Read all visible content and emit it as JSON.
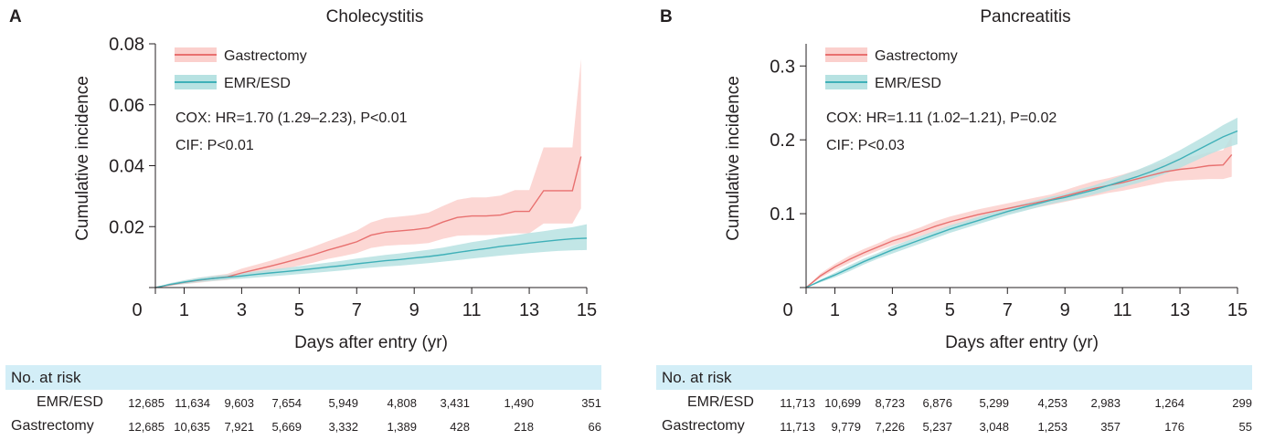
{
  "colors": {
    "gastrectomy": "#e8706f",
    "gastrectomy_band": "#fbd0cd",
    "emr": "#3fb0b8",
    "emr_band": "#b7e2e2",
    "risk_band": "#d3eef7"
  },
  "chart_data": [
    {
      "panel": "A",
      "type": "line",
      "title": "Cholecystitis",
      "xlabel": "Days after entry (yr)",
      "ylabel": "Cumulative incidence",
      "xlim": [
        0,
        15
      ],
      "ylim": [
        0,
        0.08
      ],
      "x_ticks": [
        0,
        1,
        3,
        5,
        7,
        9,
        11,
        13,
        15
      ],
      "y_ticks": [
        "",
        "0.02",
        "0.04",
        "0.06",
        "0.08"
      ],
      "y_tick_values": [
        0,
        0.02,
        0.04,
        0.06,
        0.08
      ],
      "legend": {
        "placement": "top-left"
      },
      "annotations": [
        "COX: HR=1.70 (1.29–2.23), P<0.01",
        "CIF: P<0.01"
      ],
      "series": [
        {
          "name": "Gastrectomy",
          "x": [
            0,
            0.5,
            1,
            1.5,
            2,
            2.5,
            3,
            3.5,
            4,
            4.5,
            5,
            5.5,
            6,
            6.5,
            7,
            7.5,
            8,
            8.5,
            9,
            9.5,
            10,
            10.5,
            11,
            11.5,
            12,
            12.5,
            13,
            13.5,
            14,
            14.5,
            14.8
          ],
          "values": [
            0,
            0.0009,
            0.0017,
            0.0024,
            0.003,
            0.0035,
            0.0048,
            0.0059,
            0.007,
            0.0082,
            0.0095,
            0.0108,
            0.0123,
            0.0136,
            0.015,
            0.0172,
            0.0182,
            0.0186,
            0.019,
            0.0196,
            0.0215,
            0.023,
            0.0235,
            0.0235,
            0.0238,
            0.025,
            0.025,
            0.0318,
            0.0318,
            0.0318,
            0.043
          ],
          "lower": [
            0,
            0.0005,
            0.0011,
            0.0016,
            0.0021,
            0.0025,
            0.0034,
            0.0043,
            0.0052,
            0.0061,
            0.0072,
            0.0082,
            0.0094,
            0.0103,
            0.0113,
            0.013,
            0.0137,
            0.014,
            0.0142,
            0.0146,
            0.016,
            0.017,
            0.0172,
            0.0172,
            0.0174,
            0.0178,
            0.0178,
            0.021,
            0.021,
            0.021,
            0.026
          ],
          "upper": [
            0,
            0.0013,
            0.0023,
            0.0032,
            0.0039,
            0.0045,
            0.0062,
            0.0075,
            0.0088,
            0.0103,
            0.0118,
            0.0134,
            0.0152,
            0.0169,
            0.0187,
            0.0214,
            0.0228,
            0.0233,
            0.0238,
            0.0246,
            0.0268,
            0.0288,
            0.0296,
            0.0296,
            0.0302,
            0.032,
            0.032,
            0.046,
            0.046,
            0.046,
            0.075
          ]
        },
        {
          "name": "EMR/ESD",
          "x": [
            0,
            0.5,
            1,
            1.5,
            2,
            2.5,
            3,
            3.5,
            4,
            4.5,
            5,
            5.5,
            6,
            6.5,
            7,
            7.5,
            8,
            8.5,
            9,
            9.5,
            10,
            10.5,
            11,
            11.5,
            12,
            12.5,
            13,
            13.5,
            14,
            14.5,
            15
          ],
          "values": [
            0,
            0.001,
            0.0018,
            0.0025,
            0.003,
            0.0034,
            0.0038,
            0.0043,
            0.0048,
            0.0052,
            0.0057,
            0.0062,
            0.0067,
            0.0072,
            0.0078,
            0.0083,
            0.0088,
            0.0092,
            0.0097,
            0.0102,
            0.0108,
            0.0115,
            0.0122,
            0.0128,
            0.0135,
            0.014,
            0.0146,
            0.0151,
            0.0156,
            0.016,
            0.0162
          ],
          "lower": [
            0,
            0.0006,
            0.0012,
            0.0018,
            0.0022,
            0.0026,
            0.0029,
            0.0033,
            0.0037,
            0.004,
            0.0044,
            0.0048,
            0.0052,
            0.0056,
            0.0061,
            0.0065,
            0.0069,
            0.0072,
            0.0076,
            0.008,
            0.0085,
            0.009,
            0.0095,
            0.01,
            0.0105,
            0.0109,
            0.0113,
            0.0117,
            0.012,
            0.0122,
            0.0123
          ],
          "upper": [
            0,
            0.0014,
            0.0024,
            0.0032,
            0.0038,
            0.0042,
            0.0047,
            0.0053,
            0.0059,
            0.0064,
            0.007,
            0.0076,
            0.0082,
            0.0088,
            0.0095,
            0.0101,
            0.0107,
            0.0112,
            0.0118,
            0.0124,
            0.0131,
            0.014,
            0.0149,
            0.0156,
            0.0165,
            0.0171,
            0.0179,
            0.0185,
            0.0192,
            0.0198,
            0.0208
          ]
        }
      ],
      "risk_table": {
        "title": "No. at risk",
        "rows": [
          {
            "label": "EMR/ESD",
            "values": [
              "12,685",
              "11,634",
              "9,603",
              "7,654",
              "5,949",
              "4,808",
              "3,431",
              "1,490",
              "351"
            ]
          },
          {
            "label": "Gastrectomy",
            "values": [
              "12,685",
              "10,635",
              "7,921",
              "5,669",
              "3,332",
              "1,389",
              "428",
              "218",
              "66"
            ]
          }
        ]
      }
    },
    {
      "panel": "B",
      "type": "line",
      "title": "Pancreatitis",
      "xlabel": "Days after entry (yr)",
      "ylabel": "Cumulative incidence",
      "xlim": [
        0,
        15
      ],
      "ylim": [
        0,
        0.33
      ],
      "x_ticks": [
        0,
        1,
        3,
        5,
        7,
        9,
        11,
        13,
        15
      ],
      "y_ticks": [
        "",
        "0.1",
        "0.2",
        "0.3"
      ],
      "y_tick_values": [
        0,
        0.1,
        0.2,
        0.3
      ],
      "legend": {
        "placement": "top-left"
      },
      "annotations": [
        "COX: HR=1.11 (1.02–1.21), P=0.02",
        "CIF: P<0.03"
      ],
      "series": [
        {
          "name": "Gastrectomy",
          "x": [
            0,
            0.5,
            1,
            1.5,
            2,
            2.5,
            3,
            3.5,
            4,
            4.5,
            5,
            5.5,
            6,
            6.5,
            7,
            7.5,
            8,
            8.5,
            9,
            9.5,
            10,
            10.5,
            11,
            11.5,
            12,
            12.5,
            13,
            13.5,
            14,
            14.5,
            14.8
          ],
          "values": [
            0,
            0.016,
            0.028,
            0.038,
            0.047,
            0.055,
            0.063,
            0.069,
            0.076,
            0.083,
            0.089,
            0.094,
            0.099,
            0.103,
            0.107,
            0.111,
            0.115,
            0.119,
            0.124,
            0.129,
            0.134,
            0.138,
            0.142,
            0.147,
            0.152,
            0.157,
            0.16,
            0.162,
            0.165,
            0.166,
            0.18
          ],
          "lower": [
            0,
            0.013,
            0.024,
            0.033,
            0.042,
            0.05,
            0.057,
            0.063,
            0.07,
            0.076,
            0.082,
            0.087,
            0.092,
            0.096,
            0.1,
            0.104,
            0.108,
            0.112,
            0.116,
            0.12,
            0.124,
            0.128,
            0.131,
            0.135,
            0.139,
            0.143,
            0.145,
            0.146,
            0.147,
            0.147,
            0.15
          ],
          "upper": [
            0,
            0.019,
            0.032,
            0.043,
            0.052,
            0.06,
            0.069,
            0.075,
            0.082,
            0.09,
            0.096,
            0.101,
            0.106,
            0.11,
            0.114,
            0.118,
            0.122,
            0.126,
            0.132,
            0.138,
            0.144,
            0.148,
            0.153,
            0.159,
            0.165,
            0.171,
            0.175,
            0.178,
            0.183,
            0.186,
            0.205
          ]
        },
        {
          "name": "EMR/ESD",
          "x": [
            0,
            0.5,
            1,
            1.5,
            2,
            2.5,
            3,
            3.5,
            4,
            4.5,
            5,
            5.5,
            6,
            6.5,
            7,
            7.5,
            8,
            8.5,
            9,
            9.5,
            10,
            10.5,
            11,
            11.5,
            12,
            12.5,
            13,
            13.5,
            14,
            14.5,
            15
          ],
          "values": [
            0,
            0.009,
            0.017,
            0.026,
            0.035,
            0.043,
            0.051,
            0.058,
            0.065,
            0.072,
            0.079,
            0.085,
            0.091,
            0.097,
            0.103,
            0.108,
            0.113,
            0.118,
            0.122,
            0.127,
            0.132,
            0.138,
            0.144,
            0.15,
            0.157,
            0.165,
            0.174,
            0.184,
            0.194,
            0.204,
            0.212
          ],
          "lower": [
            0,
            0.007,
            0.014,
            0.022,
            0.031,
            0.039,
            0.046,
            0.053,
            0.06,
            0.067,
            0.074,
            0.08,
            0.086,
            0.092,
            0.098,
            0.103,
            0.108,
            0.113,
            0.117,
            0.121,
            0.126,
            0.131,
            0.136,
            0.141,
            0.147,
            0.154,
            0.162,
            0.171,
            0.18,
            0.188,
            0.194
          ],
          "upper": [
            0,
            0.011,
            0.02,
            0.03,
            0.039,
            0.047,
            0.056,
            0.063,
            0.07,
            0.077,
            0.084,
            0.09,
            0.096,
            0.102,
            0.108,
            0.113,
            0.118,
            0.123,
            0.127,
            0.133,
            0.138,
            0.145,
            0.152,
            0.159,
            0.167,
            0.176,
            0.186,
            0.197,
            0.208,
            0.22,
            0.23
          ]
        }
      ],
      "risk_table": {
        "title": "No. at risk",
        "rows": [
          {
            "label": "EMR/ESD",
            "values": [
              "11,713",
              "10,699",
              "8,723",
              "6,876",
              "5,299",
              "4,253",
              "2,983",
              "1,264",
              "299"
            ]
          },
          {
            "label": "Gastrectomy",
            "values": [
              "11,713",
              "9,779",
              "7,226",
              "5,237",
              "3,048",
              "1,253",
              "357",
              "176",
              "55"
            ]
          }
        ]
      }
    }
  ]
}
